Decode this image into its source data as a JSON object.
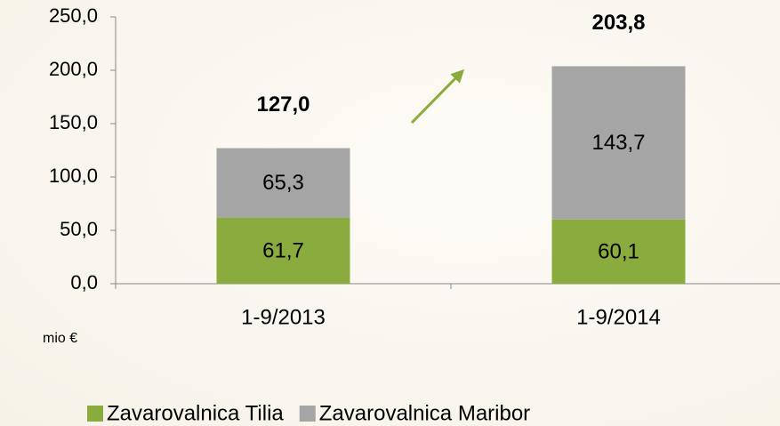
{
  "chart_data": {
    "type": "stacked_bar",
    "categories": [
      "1-9/2013",
      "1-9/2014"
    ],
    "series": [
      {
        "name": "Zavarovalnica Tilia",
        "color": "#8aac3e",
        "values": [
          61.7,
          60.1
        ],
        "value_labels": [
          "61,7",
          "60,1"
        ]
      },
      {
        "name": "Zavarovalnica Maribor",
        "color": "#a5a5a5",
        "values": [
          65.3,
          143.7
        ],
        "value_labels": [
          "65,3",
          "143,7"
        ]
      }
    ],
    "total_labels": [
      "127,0",
      "203,8"
    ],
    "y_axis_label": "mio €",
    "ylim": [
      0,
      250
    ],
    "yticks": [
      {
        "value": 0,
        "label": "0,0"
      },
      {
        "value": 50,
        "label": "50,0"
      },
      {
        "value": 100,
        "label": "100,0"
      },
      {
        "value": 150,
        "label": "150,0"
      },
      {
        "value": 200,
        "label": "200,0"
      },
      {
        "value": 250,
        "label": "250,0"
      }
    ],
    "legend": "bottom"
  }
}
